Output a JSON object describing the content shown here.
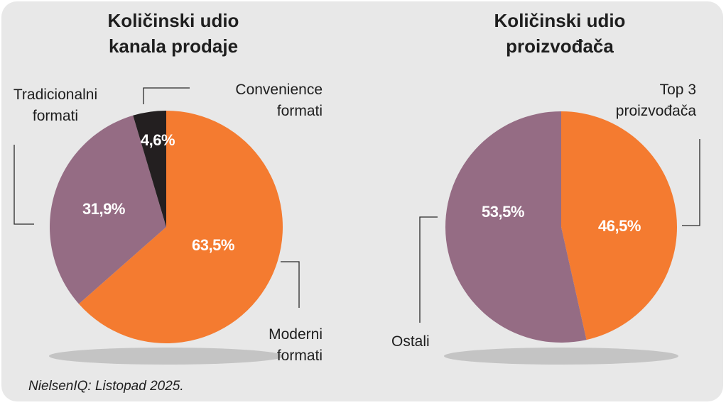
{
  "source_note": "NielsenIQ: Listopad 2025.",
  "chart_data": [
    {
      "type": "pie",
      "title": [
        "Količinski udio",
        "kanala prodaje"
      ],
      "start_angle_deg": 0,
      "direction": "clockwise",
      "slices": [
        {
          "label": [
            "Moderni",
            "formati"
          ],
          "value": 63.5,
          "value_label": "63,5%",
          "color": "#f47b30"
        },
        {
          "label": [
            "Tradicionalni",
            "formati"
          ],
          "value": 31.9,
          "value_label": "31,9%",
          "color": "#956c84"
        },
        {
          "label": [
            "Convenience",
            "formati"
          ],
          "value": 4.6,
          "value_label": "4,6%",
          "color": "#231f20"
        }
      ]
    },
    {
      "type": "pie",
      "title": [
        "Količinski udio",
        "proizvođača"
      ],
      "start_angle_deg": 0,
      "direction": "clockwise",
      "slices": [
        {
          "label": [
            "Top 3",
            "proizvođača"
          ],
          "value": 46.5,
          "value_label": "46,5%",
          "color": "#f47b30"
        },
        {
          "label": [
            "Ostali"
          ],
          "value": 53.5,
          "value_label": "53,5%",
          "color": "#956c84"
        }
      ]
    }
  ]
}
